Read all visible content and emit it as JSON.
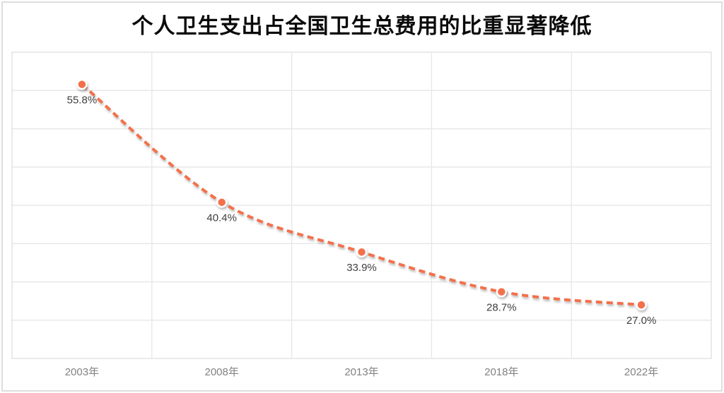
{
  "chart_data": {
    "type": "line",
    "title": "个人卫生支出占全国卫生总费用的比重显著降低",
    "categories": [
      "2003年",
      "2008年",
      "2013年",
      "2018年",
      "2022年"
    ],
    "values": [
      55.8,
      40.4,
      33.9,
      28.7,
      27.0
    ],
    "data_labels": [
      "55.8%",
      "40.4%",
      "33.9%",
      "28.7%",
      "27.0%"
    ],
    "xlabel": "",
    "ylabel": "",
    "ylim": [
      20,
      60
    ],
    "y_step": 5,
    "grid": "on",
    "y_tick_labels_visible": false,
    "legend": "none",
    "line_style": "dashed-smooth",
    "colors": {
      "line": "#F2714B",
      "marker_fill": "#F2714B",
      "marker_ring": "#FFFFFF",
      "data_label": "#3F3F3F",
      "axis_label": "#828282",
      "gridline": "#E8E8E8",
      "plot_border": "#E4E4E4",
      "title": "#0A0A0A",
      "frame_border": "#DEDEDE"
    }
  }
}
